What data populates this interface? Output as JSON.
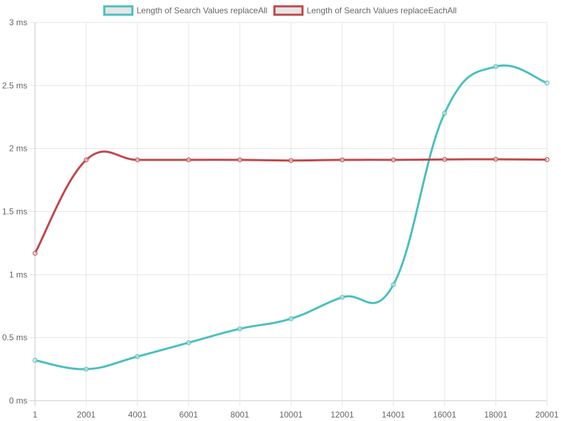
{
  "chart_data": {
    "type": "line",
    "title": "",
    "xlabel": "",
    "ylabel": "",
    "categories": [
      "1",
      "2001",
      "4001",
      "6001",
      "8001",
      "10001",
      "12001",
      "14001",
      "16001",
      "18001",
      "20001"
    ],
    "ylim": [
      0,
      3
    ],
    "y_ticks": [
      "0 ms",
      "0.5 ms",
      "1 ms",
      "1.5 ms",
      "2 ms",
      "2.5 ms",
      "3 ms"
    ],
    "y_unit": "ms",
    "grid": true,
    "legend_position": "top",
    "series": [
      {
        "name": "Length of Search Values replaceAll",
        "color": "#4bbfbf",
        "values": [
          0.32,
          0.25,
          0.35,
          0.46,
          0.57,
          0.65,
          0.82,
          0.92,
          2.28,
          2.65,
          2.52
        ]
      },
      {
        "name": "Length of Search Values replaceEachAll",
        "color": "#c0474b",
        "values": [
          1.17,
          1.91,
          1.91,
          1.91,
          1.91,
          1.905,
          1.91,
          1.91,
          1.913,
          1.915,
          1.912
        ]
      }
    ]
  }
}
